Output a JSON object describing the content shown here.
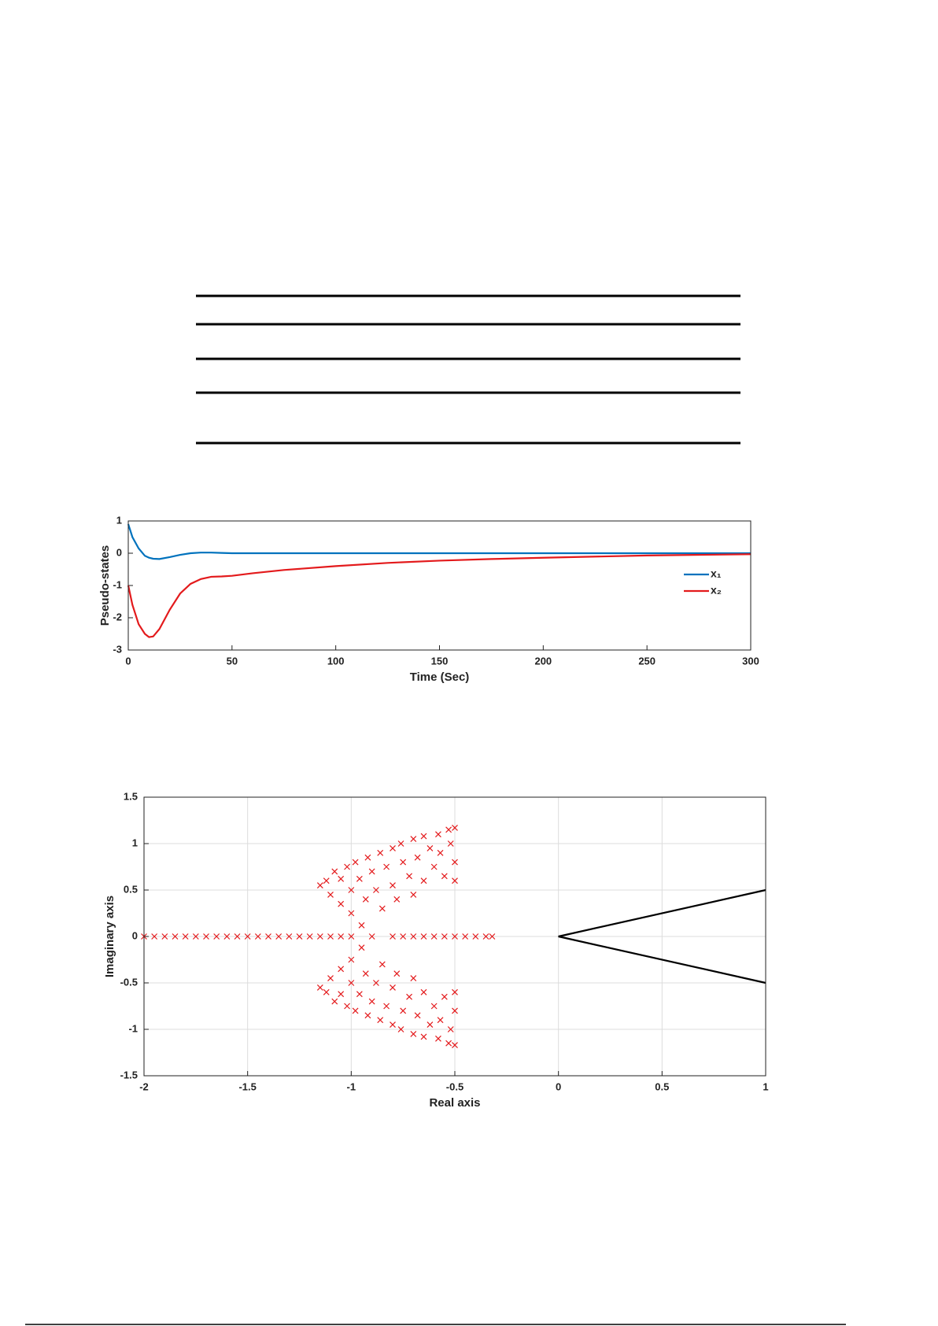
{
  "chart_data": [
    {
      "type": "line",
      "ylabel": "Pseudo-states",
      "xlabel": "Time (Sec)",
      "x": [
        0,
        2,
        5,
        8,
        10,
        12,
        15,
        20,
        25,
        30,
        35,
        40,
        45,
        50,
        60,
        75,
        100,
        125,
        150,
        175,
        200,
        250,
        300
      ],
      "series": [
        {
          "name": "x₁",
          "color": "#0072bd",
          "values": [
            0.9,
            0.5,
            0.15,
            -0.08,
            -0.14,
            -0.17,
            -0.18,
            -0.12,
            -0.05,
            0,
            0.02,
            0.02,
            0.01,
            0,
            0,
            0,
            0,
            0,
            0,
            0,
            0,
            0,
            0
          ]
        },
        {
          "name": "x₂",
          "color": "#e31a1c",
          "values": [
            -1,
            -1.6,
            -2.2,
            -2.5,
            -2.6,
            -2.58,
            -2.35,
            -1.75,
            -1.25,
            -0.95,
            -0.8,
            -0.73,
            -0.72,
            -0.7,
            -0.62,
            -0.52,
            -0.4,
            -0.3,
            -0.23,
            -0.18,
            -0.14,
            -0.07,
            -0.03
          ]
        }
      ],
      "xlim": [
        0,
        300
      ],
      "xticks": [
        0,
        50,
        100,
        150,
        200,
        250,
        300
      ],
      "ylim": [
        -3,
        1
      ],
      "yticks": [
        -3,
        -2,
        -1,
        0,
        1
      ],
      "grid": false,
      "legend": "right"
    },
    {
      "type": "scatter",
      "ylabel": "Imaginary axis",
      "xlabel": "Real axis",
      "series": [
        {
          "color": "#e31a1c",
          "marker": "x",
          "x": [
            -1.15,
            -1.12,
            -1.1,
            -1.08,
            -1.05,
            -1.05,
            -1.02,
            -1.0,
            -1.0,
            -0.98,
            -0.96,
            -0.95,
            -0.93,
            -0.92,
            -0.9,
            -0.88,
            -0.86,
            -0.85,
            -0.83,
            -0.8,
            -0.8,
            -0.78,
            -0.76,
            -0.75,
            -0.72,
            -0.7,
            -0.7,
            -0.68,
            -0.65,
            -0.65,
            -0.62,
            -0.6,
            -0.58,
            -0.57,
            -0.55,
            -0.53,
            -0.52,
            -0.5,
            -0.5,
            -0.5,
            -1.15,
            -1.12,
            -1.1,
            -1.08,
            -1.05,
            -1.05,
            -1.02,
            -1.0,
            -1.0,
            -0.98,
            -0.96,
            -0.95,
            -0.93,
            -0.92,
            -0.9,
            -0.88,
            -0.86,
            -0.85,
            -0.83,
            -0.8,
            -0.8,
            -0.78,
            -0.76,
            -0.75,
            -0.72,
            -0.7,
            -0.7,
            -0.68,
            -0.65,
            -0.65,
            -0.62,
            -0.6,
            -0.58,
            -0.57,
            -0.55,
            -0.53,
            -0.52,
            -0.5,
            -0.5,
            -0.5,
            -2,
            -1.95,
            -1.9,
            -1.85,
            -1.8,
            -1.75,
            -1.7,
            -1.65,
            -1.6,
            -1.55,
            -1.5,
            -1.45,
            -1.4,
            -1.35,
            -1.3,
            -1.25,
            -1.2,
            -1.15,
            -1.1,
            -1.05,
            -1.0,
            -0.9,
            -0.8,
            -0.75,
            -0.7,
            -0.65,
            -0.6,
            -0.55,
            -0.5,
            -0.45,
            -0.4,
            -0.35,
            -0.32
          ],
          "values": [
            0.55,
            0.6,
            0.45,
            0.7,
            0.62,
            0.35,
            0.75,
            0.5,
            0.25,
            0.8,
            0.62,
            0.12,
            0.4,
            0.85,
            0.7,
            0.5,
            0.9,
            0.3,
            0.75,
            0.95,
            0.55,
            0.4,
            1.0,
            0.8,
            0.65,
            1.05,
            0.45,
            0.85,
            1.08,
            0.6,
            0.95,
            0.75,
            1.1,
            0.9,
            0.65,
            1.15,
            1.0,
            0.8,
            1.17,
            0.6,
            -0.55,
            -0.6,
            -0.45,
            -0.7,
            -0.62,
            -0.35,
            -0.75,
            -0.5,
            -0.25,
            -0.8,
            -0.62,
            -0.12,
            -0.4,
            -0.85,
            -0.7,
            -0.5,
            -0.9,
            -0.3,
            -0.75,
            -0.95,
            -0.55,
            -0.4,
            -1.0,
            -0.8,
            -0.65,
            -1.05,
            -0.45,
            -0.85,
            -1.08,
            -0.6,
            -0.95,
            -0.75,
            -1.1,
            -0.9,
            -0.65,
            -1.15,
            -1.0,
            -0.8,
            -1.17,
            -0.6,
            0,
            0,
            0,
            0,
            0,
            0,
            0,
            0,
            0,
            0,
            0,
            0,
            0,
            0,
            0,
            0,
            0,
            0,
            0,
            0,
            0,
            0,
            0,
            0,
            0,
            0,
            0,
            0,
            0,
            0,
            0,
            0,
            0
          ]
        },
        {
          "color": "#000000",
          "marker": "none",
          "x": [
            1,
            0,
            1
          ],
          "values": [
            0.5,
            0,
            -0.5
          ]
        }
      ],
      "xlim": [
        -2,
        1
      ],
      "xticks": [
        -2,
        -1.5,
        -1,
        -0.5,
        0,
        0.5,
        1
      ],
      "ylim": [
        -1.5,
        1.5
      ],
      "yticks": [
        -1.5,
        -1,
        -0.5,
        0,
        0.5,
        1,
        1.5
      ],
      "grid": true
    }
  ]
}
